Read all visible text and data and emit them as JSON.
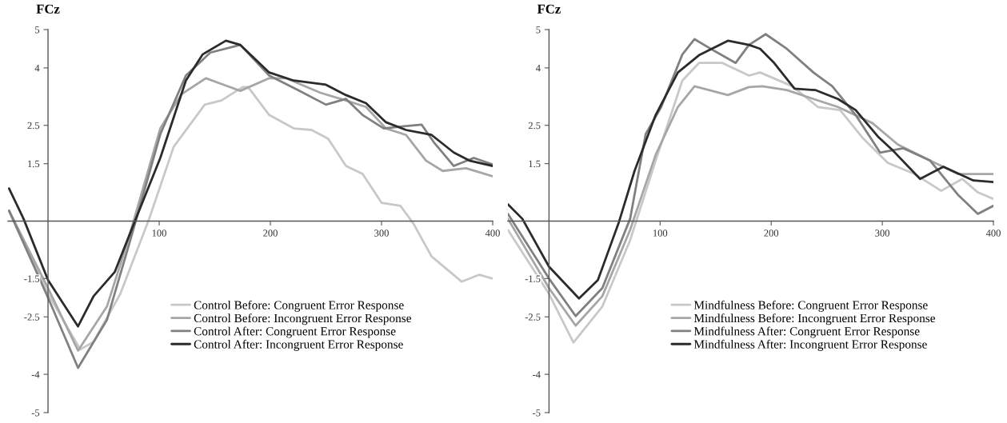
{
  "chart_data": [
    {
      "type": "line",
      "ylabel": "FCz",
      "xlim": [
        -36,
        400
      ],
      "ylim": [
        -5,
        5
      ],
      "xticks": [
        100,
        200,
        300,
        400
      ],
      "yticks": [
        5,
        4,
        2.5,
        1.5,
        -1.5,
        -2.5,
        -4,
        -5
      ],
      "grid": false,
      "legend": "bottom",
      "line_style": "solid",
      "marker": "none",
      "series": [
        {
          "name": "Control Before: Congruent Error Response",
          "color": "#c8c8c8",
          "x": [
            -35,
            0,
            29,
            41,
            65,
            91,
            113,
            141,
            156,
            175,
            180,
            199,
            221,
            237,
            252,
            268,
            283,
            300,
            317,
            329,
            345,
            372,
            388,
            400
          ],
          "values": [
            0.27,
            -1.9,
            -3.35,
            -3.15,
            -1.9,
            0.06,
            1.94,
            3.04,
            3.15,
            3.5,
            3.5,
            2.77,
            2.42,
            2.38,
            2.15,
            1.44,
            1.23,
            0.48,
            0.4,
            -0.08,
            -0.92,
            -1.58,
            -1.4,
            -1.5
          ]
        },
        {
          "name": "Control Before: Incongruent Error Response",
          "color": "#a6a6a6",
          "x": [
            -35,
            0,
            27,
            53,
            72,
            101,
            120,
            142,
            158,
            173,
            199,
            214,
            245,
            268,
            286,
            304,
            322,
            340,
            355,
            376,
            400
          ],
          "values": [
            0.27,
            -1.75,
            -3.38,
            -2.23,
            -0.5,
            2.42,
            3.31,
            3.73,
            3.56,
            3.4,
            3.73,
            3.73,
            3.35,
            3.15,
            2.98,
            2.42,
            2.25,
            1.58,
            1.31,
            1.38,
            1.17
          ]
        },
        {
          "name": "Control After: Congruent Error Response",
          "color": "#808080",
          "x": [
            -35,
            0,
            27,
            53,
            74,
            101,
            124,
            146,
            173,
            199,
            225,
            250,
            268,
            283,
            302,
            322,
            336,
            347,
            365,
            383,
            400
          ],
          "values": [
            0.27,
            -2.0,
            -3.83,
            -2.58,
            -0.5,
            2.27,
            3.8,
            4.4,
            4.6,
            3.8,
            3.42,
            3.04,
            3.19,
            2.77,
            2.42,
            2.48,
            2.52,
            2.06,
            1.44,
            1.65,
            1.48
          ]
        },
        {
          "name": "Control After: Incongruent Error Response",
          "color": "#2b2b2b",
          "x": [
            -35,
            -22,
            0,
            27,
            41,
            60,
            79,
            101,
            124,
            139,
            160,
            173,
            199,
            221,
            250,
            268,
            286,
            304,
            322,
            345,
            365,
            379,
            400
          ],
          "values": [
            0.85,
            0.06,
            -1.54,
            -2.75,
            -1.96,
            -1.33,
            0.06,
            1.65,
            3.67,
            4.35,
            4.71,
            4.6,
            3.88,
            3.67,
            3.56,
            3.29,
            3.08,
            2.58,
            2.38,
            2.25,
            1.79,
            1.58,
            1.44
          ]
        }
      ]
    },
    {
      "type": "line",
      "ylabel": "FCz",
      "xlim": [
        -37,
        400
      ],
      "ylim": [
        -5,
        5
      ],
      "xticks": [
        100,
        200,
        300,
        400
      ],
      "yticks": [
        5,
        4,
        2.5,
        1.5,
        -1.5,
        -2.5,
        -4,
        -5
      ],
      "grid": false,
      "legend": "bottom",
      "line_style": "solid",
      "marker": "none",
      "series": [
        {
          "name": "Mindfulness Before: Congruent Error Response",
          "color": "#c8c8c8",
          "x": [
            -37,
            0,
            22,
            48,
            73,
            96,
            120,
            135,
            156,
            180,
            190,
            219,
            242,
            262,
            283,
            305,
            329,
            353,
            372,
            386,
            400
          ],
          "values": [
            -0.23,
            -1.9,
            -3.17,
            -2.23,
            -0.5,
            1.58,
            3.67,
            4.13,
            4.13,
            3.8,
            3.88,
            3.52,
            2.98,
            2.9,
            2.15,
            1.52,
            1.23,
            0.79,
            1.1,
            0.75,
            0.58
          ]
        },
        {
          "name": "Mindfulness Before: Incongruent Error Response",
          "color": "#a6a6a6",
          "x": [
            -37,
            0,
            24,
            48,
            73,
            96,
            116,
            131,
            161,
            180,
            192,
            214,
            238,
            260,
            291,
            314,
            343,
            368,
            400
          ],
          "values": [
            0.06,
            -1.75,
            -2.73,
            -1.96,
            -0.23,
            1.73,
            2.98,
            3.52,
            3.29,
            3.5,
            3.52,
            3.42,
            3.19,
            2.98,
            2.56,
            2.0,
            1.58,
            1.23,
            1.23
          ]
        },
        {
          "name": "Mindfulness After: Congruent Error Response",
          "color": "#808080",
          "x": [
            -37,
            0,
            24,
            48,
            73,
            87,
            101,
            120,
            131,
            149,
            168,
            180,
            195,
            214,
            238,
            255,
            276,
            298,
            319,
            343,
            368,
            386,
            400
          ],
          "values": [
            0.19,
            -1.5,
            -2.48,
            -1.75,
            0.06,
            2.27,
            2.98,
            4.35,
            4.75,
            4.44,
            4.13,
            4.6,
            4.88,
            4.5,
            3.88,
            3.52,
            2.77,
            1.79,
            1.9,
            1.58,
            0.69,
            0.19,
            0.4
          ]
        },
        {
          "name": "Mindfulness After: Incongruent Error Response",
          "color": "#2b2b2b",
          "x": [
            -37,
            -24,
            0,
            27,
            44,
            63,
            77,
            96,
            116,
            135,
            161,
            180,
            190,
            202,
            221,
            240,
            260,
            276,
            296,
            310,
            334,
            355,
            382,
            400
          ],
          "values": [
            0.44,
            0.06,
            -1.19,
            -2.02,
            -1.54,
            -0.02,
            1.31,
            2.77,
            3.88,
            4.33,
            4.71,
            4.6,
            4.5,
            4.15,
            3.46,
            3.42,
            3.19,
            2.9,
            2.21,
            1.83,
            1.1,
            1.42,
            1.06,
            1.02
          ]
        }
      ]
    }
  ]
}
